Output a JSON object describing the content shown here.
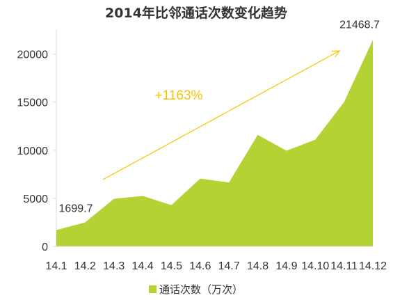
{
  "chart_data": {
    "type": "area",
    "title": "2014年比邻通话次数变化趋势",
    "categories": [
      "14.1",
      "14.2",
      "14.3",
      "14.4",
      "14.5",
      "14.6",
      "14.7",
      "14.8",
      "14.9",
      "14.10",
      "14.11",
      "14.12"
    ],
    "series": [
      {
        "name": "通话次数（万次）",
        "values": [
          1699.7,
          2500,
          4950,
          5250,
          4300,
          7050,
          6650,
          11600,
          9950,
          11100,
          15000,
          21468.7
        ]
      }
    ],
    "ylim": [
      0,
      22000
    ],
    "yticks": [
      0,
      5000,
      10000,
      15000,
      20000
    ],
    "legend_position": "bottom",
    "grid": false,
    "annotations": {
      "first_value": "1699.7",
      "last_value": "21468.7",
      "growth": "+1163%"
    },
    "colors": {
      "area": "#b3d334",
      "arrow": "#f5c400",
      "axis": "#d9d9d9",
      "text": "#333333"
    }
  }
}
